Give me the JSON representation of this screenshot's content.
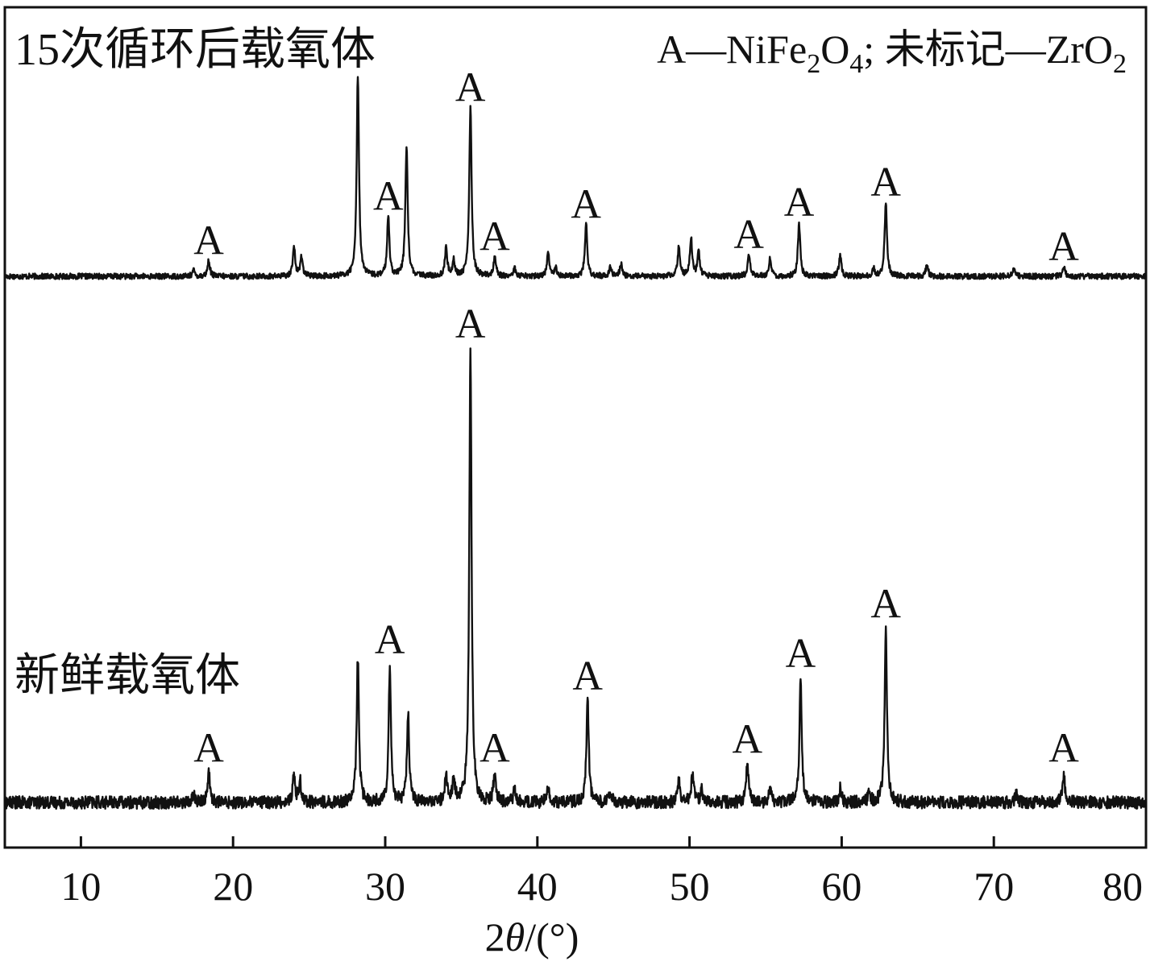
{
  "chart_data": {
    "type": "line",
    "xlabel_prefix": "2",
    "xlabel_theta": "θ",
    "xlabel_suffix": "/(°)",
    "xlim": [
      5,
      80
    ],
    "xticks": [
      "10",
      "20",
      "30",
      "40",
      "50",
      "60",
      "70",
      "80"
    ],
    "grid": false,
    "legend": {
      "text_a": "A—NiFe",
      "sub_a": "2",
      "text_b": "O",
      "sub_b": "4",
      "text_c": "; 未标记—ZrO",
      "sub_c": "2",
      "position": "top-right"
    },
    "peak_label": "A",
    "series": [
      {
        "name": "15次循环后载氧体",
        "label_position": "top-left",
        "baseline": 0.0,
        "peaks": [
          {
            "x": 17.4,
            "h": 0.03
          },
          {
            "x": 18.4,
            "h": 0.08
          },
          {
            "x": 24.0,
            "h": 0.15
          },
          {
            "x": 24.5,
            "h": 0.1
          },
          {
            "x": 28.2,
            "h": 1.0
          },
          {
            "x": 30.2,
            "h": 0.3
          },
          {
            "x": 31.4,
            "h": 0.65
          },
          {
            "x": 34.0,
            "h": 0.14
          },
          {
            "x": 34.5,
            "h": 0.08
          },
          {
            "x": 35.6,
            "h": 0.84
          },
          {
            "x": 37.2,
            "h": 0.1
          },
          {
            "x": 38.5,
            "h": 0.04
          },
          {
            "x": 40.7,
            "h": 0.12
          },
          {
            "x": 41.2,
            "h": 0.05
          },
          {
            "x": 43.2,
            "h": 0.26
          },
          {
            "x": 44.8,
            "h": 0.05
          },
          {
            "x": 45.5,
            "h": 0.06
          },
          {
            "x": 49.3,
            "h": 0.15
          },
          {
            "x": 50.1,
            "h": 0.19
          },
          {
            "x": 50.6,
            "h": 0.12
          },
          {
            "x": 53.9,
            "h": 0.11
          },
          {
            "x": 55.3,
            "h": 0.09
          },
          {
            "x": 57.2,
            "h": 0.26
          },
          {
            "x": 59.9,
            "h": 0.11
          },
          {
            "x": 62.1,
            "h": 0.04
          },
          {
            "x": 62.9,
            "h": 0.37
          },
          {
            "x": 65.6,
            "h": 0.06
          },
          {
            "x": 71.3,
            "h": 0.04
          },
          {
            "x": 74.6,
            "h": 0.05
          }
        ],
        "annotations": [
          {
            "x": 18.4,
            "y": 0.11
          },
          {
            "x": 30.2,
            "y": 0.33
          },
          {
            "x": 35.6,
            "y": 0.87
          },
          {
            "x": 37.2,
            "y": 0.13
          },
          {
            "x": 43.2,
            "y": 0.29
          },
          {
            "x": 53.9,
            "y": 0.14
          },
          {
            "x": 57.2,
            "y": 0.3
          },
          {
            "x": 62.9,
            "y": 0.4
          },
          {
            "x": 74.6,
            "y": 0.08
          }
        ]
      },
      {
        "name": "新鲜载氧体",
        "label_position": "middle-left",
        "baseline": 0.0,
        "peaks": [
          {
            "x": 17.4,
            "h": 0.02
          },
          {
            "x": 18.4,
            "h": 0.07
          },
          {
            "x": 24.0,
            "h": 0.06
          },
          {
            "x": 24.4,
            "h": 0.05
          },
          {
            "x": 28.2,
            "h": 0.32
          },
          {
            "x": 30.3,
            "h": 0.3
          },
          {
            "x": 31.5,
            "h": 0.2
          },
          {
            "x": 34.0,
            "h": 0.06
          },
          {
            "x": 34.5,
            "h": 0.05
          },
          {
            "x": 35.6,
            "h": 1.0
          },
          {
            "x": 37.2,
            "h": 0.07
          },
          {
            "x": 38.5,
            "h": 0.03
          },
          {
            "x": 40.7,
            "h": 0.03
          },
          {
            "x": 43.3,
            "h": 0.23
          },
          {
            "x": 44.8,
            "h": 0.02
          },
          {
            "x": 49.3,
            "h": 0.05
          },
          {
            "x": 50.2,
            "h": 0.07
          },
          {
            "x": 50.8,
            "h": 0.03
          },
          {
            "x": 53.8,
            "h": 0.09
          },
          {
            "x": 55.3,
            "h": 0.03
          },
          {
            "x": 57.3,
            "h": 0.27
          },
          {
            "x": 59.9,
            "h": 0.03
          },
          {
            "x": 61.8,
            "h": 0.02
          },
          {
            "x": 62.9,
            "h": 0.38
          },
          {
            "x": 71.5,
            "h": 0.02
          },
          {
            "x": 74.6,
            "h": 0.06
          }
        ],
        "annotations": [
          {
            "x": 18.4,
            "y": 0.09
          },
          {
            "x": 30.3,
            "y": 0.33
          },
          {
            "x": 35.6,
            "y": 1.03
          },
          {
            "x": 37.2,
            "y": 0.09
          },
          {
            "x": 43.3,
            "y": 0.25
          },
          {
            "x": 53.8,
            "y": 0.11
          },
          {
            "x": 57.3,
            "y": 0.3
          },
          {
            "x": 62.9,
            "y": 0.41
          },
          {
            "x": 74.6,
            "y": 0.09
          }
        ]
      }
    ]
  }
}
